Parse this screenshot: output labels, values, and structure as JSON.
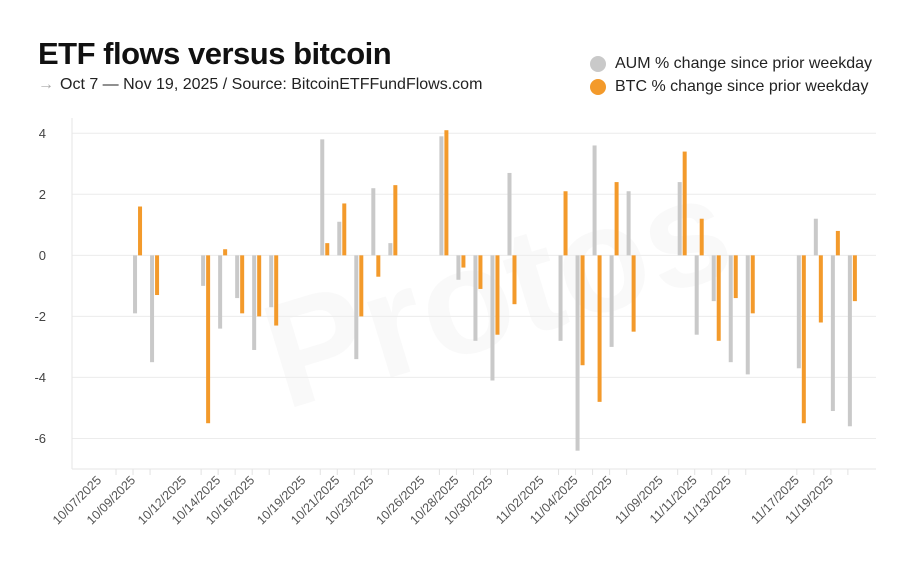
{
  "header": {
    "title": "ETF flows versus bitcoin",
    "subtitle_arrow": "→",
    "subtitle": "Oct 7 — Nov 19, 2025 / Source: BitcoinETFFundFlows.com"
  },
  "watermark": "Protos",
  "chart_data": {
    "type": "bar",
    "title": "ETF flows versus bitcoin",
    "xlabel": "",
    "ylabel": "",
    "ylim": [
      -7,
      4.5
    ],
    "yticks": [
      -6,
      -4,
      -2,
      0,
      2,
      4
    ],
    "grid": true,
    "legend": "top-right",
    "x_tick_labels": [
      "10/07/2025",
      "10/09/2025",
      "10/12/2025",
      "10/14/2025",
      "10/16/2025",
      "10/19/2025",
      "10/21/2025",
      "10/23/2025",
      "10/26/2025",
      "10/28/2025",
      "10/30/2025",
      "11/02/2025",
      "11/04/2025",
      "11/06/2025",
      "11/09/2025",
      "11/11/2025",
      "11/13/2025",
      "11/17/2025",
      "11/19/2025"
    ],
    "x": [
      "2025-10-08",
      "2025-10-09",
      "2025-10-10",
      "2025-10-13",
      "2025-10-14",
      "2025-10-15",
      "2025-10-16",
      "2025-10-17",
      "2025-10-20",
      "2025-10-21",
      "2025-10-22",
      "2025-10-23",
      "2025-10-24",
      "2025-10-27",
      "2025-10-28",
      "2025-10-29",
      "2025-10-30",
      "2025-10-31",
      "2025-11-03",
      "2025-11-04",
      "2025-11-05",
      "2025-11-06",
      "2025-11-07",
      "2025-11-10",
      "2025-11-11",
      "2025-11-12",
      "2025-11-13",
      "2025-11-14",
      "2025-11-17",
      "2025-11-18",
      "2025-11-19",
      "2025-11-20"
    ],
    "series": [
      {
        "name": "AUM % change since prior weekday",
        "color": "#c9c9c9",
        "values": [
          null,
          -1.9,
          -3.5,
          -1.0,
          -2.4,
          -1.4,
          -3.1,
          -1.7,
          3.8,
          1.1,
          -3.4,
          2.2,
          0.4,
          3.9,
          -0.8,
          -2.8,
          -4.1,
          2.7,
          -2.8,
          -6.4,
          3.6,
          -3.0,
          2.1,
          2.4,
          -2.6,
          -1.5,
          -3.5,
          -3.9,
          -3.7,
          1.2,
          -5.1,
          -5.6
        ]
      },
      {
        "name": "BTC % change since prior weekday",
        "color": "#f39a2b",
        "values": [
          null,
          1.6,
          -1.3,
          -5.5,
          0.2,
          -1.9,
          -2.0,
          -2.3,
          0.4,
          1.7,
          -2.0,
          -0.7,
          2.3,
          4.1,
          -0.4,
          -1.1,
          -2.6,
          -1.6,
          2.1,
          -3.6,
          -4.8,
          2.4,
          -2.5,
          3.4,
          1.2,
          -2.8,
          -1.4,
          -1.9,
          -5.5,
          -2.2,
          0.8,
          -1.5
        ]
      }
    ]
  }
}
